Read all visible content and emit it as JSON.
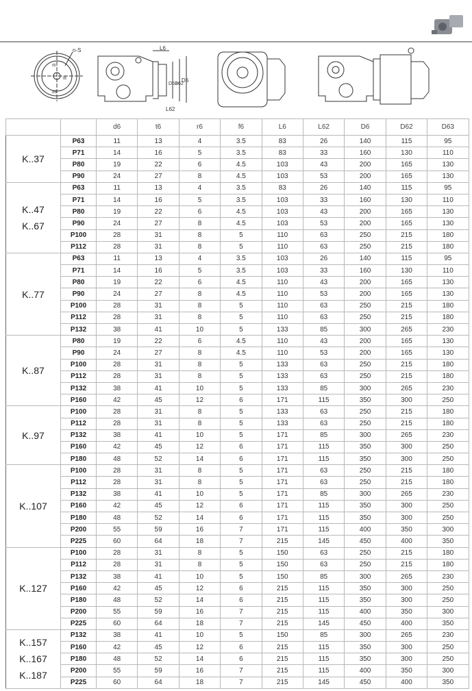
{
  "drawing_labels": {
    "n_s": "n-S",
    "d6": "d6",
    "t6": "t6",
    "r6": "r6",
    "L6": "L6",
    "L62": "L62",
    "D63": "D63",
    "D62": "D62",
    "D6": "D6"
  },
  "columns": [
    "",
    "",
    "d6",
    "t6",
    "r6",
    "f6",
    "L6",
    "L62",
    "D6",
    "D62",
    "D63"
  ],
  "groups": [
    {
      "models": [
        "K..37"
      ],
      "rows": [
        [
          "P63",
          "11",
          "13",
          "4",
          "3.5",
          "83",
          "26",
          "140",
          "115",
          "95"
        ],
        [
          "P71",
          "14",
          "16",
          "5",
          "3.5",
          "83",
          "33",
          "160",
          "130",
          "110"
        ],
        [
          "P80",
          "19",
          "22",
          "6",
          "4.5",
          "103",
          "43",
          "200",
          "165",
          "130"
        ],
        [
          "P90",
          "24",
          "27",
          "8",
          "4.5",
          "103",
          "53",
          "200",
          "165",
          "130"
        ]
      ]
    },
    {
      "models": [
        "K..47",
        "K..67"
      ],
      "rows": [
        [
          "P63",
          "11",
          "13",
          "4",
          "3.5",
          "83",
          "26",
          "140",
          "115",
          "95"
        ],
        [
          "P71",
          "14",
          "16",
          "5",
          "3.5",
          "103",
          "33",
          "160",
          "130",
          "110"
        ],
        [
          "P80",
          "19",
          "22",
          "6",
          "4.5",
          "103",
          "43",
          "200",
          "165",
          "130"
        ],
        [
          "P90",
          "24",
          "27",
          "8",
          "4.5",
          "103",
          "53",
          "200",
          "165",
          "130"
        ],
        [
          "P100",
          "28",
          "31",
          "8",
          "5",
          "110",
          "63",
          "250",
          "215",
          "180"
        ],
        [
          "P112",
          "28",
          "31",
          "8",
          "5",
          "110",
          "63",
          "250",
          "215",
          "180"
        ]
      ]
    },
    {
      "models": [
        "K..77"
      ],
      "rows": [
        [
          "P63",
          "11",
          "13",
          "4",
          "3.5",
          "103",
          "26",
          "140",
          "115",
          "95"
        ],
        [
          "P71",
          "14",
          "16",
          "5",
          "3.5",
          "103",
          "33",
          "160",
          "130",
          "110"
        ],
        [
          "P80",
          "19",
          "22",
          "6",
          "4.5",
          "110",
          "43",
          "200",
          "165",
          "130"
        ],
        [
          "P90",
          "24",
          "27",
          "8",
          "4.5",
          "110",
          "53",
          "200",
          "165",
          "130"
        ],
        [
          "P100",
          "28",
          "31",
          "8",
          "5",
          "110",
          "63",
          "250",
          "215",
          "180"
        ],
        [
          "P112",
          "28",
          "31",
          "8",
          "5",
          "110",
          "63",
          "250",
          "215",
          "180"
        ],
        [
          "P132",
          "38",
          "41",
          "10",
          "5",
          "133",
          "85",
          "300",
          "265",
          "230"
        ]
      ]
    },
    {
      "models": [
        "K..87"
      ],
      "rows": [
        [
          "P80",
          "19",
          "22",
          "6",
          "4.5",
          "110",
          "43",
          "200",
          "165",
          "130"
        ],
        [
          "P90",
          "24",
          "27",
          "8",
          "4.5",
          "110",
          "53",
          "200",
          "165",
          "130"
        ],
        [
          "P100",
          "28",
          "31",
          "8",
          "5",
          "133",
          "63",
          "250",
          "215",
          "180"
        ],
        [
          "P112",
          "28",
          "31",
          "8",
          "5",
          "133",
          "63",
          "250",
          "215",
          "180"
        ],
        [
          "P132",
          "38",
          "41",
          "10",
          "5",
          "133",
          "85",
          "300",
          "265",
          "230"
        ],
        [
          "P160",
          "42",
          "45",
          "12",
          "6",
          "171",
          "115",
          "350",
          "300",
          "250"
        ]
      ]
    },
    {
      "models": [
        "K..97"
      ],
      "rows": [
        [
          "P100",
          "28",
          "31",
          "8",
          "5",
          "133",
          "63",
          "250",
          "215",
          "180"
        ],
        [
          "P112",
          "28",
          "31",
          "8",
          "5",
          "133",
          "63",
          "250",
          "215",
          "180"
        ],
        [
          "P132",
          "38",
          "41",
          "10",
          "5",
          "171",
          "85",
          "300",
          "265",
          "230"
        ],
        [
          "P160",
          "42",
          "45",
          "12",
          "6",
          "171",
          "115",
          "350",
          "300",
          "250"
        ],
        [
          "P180",
          "48",
          "52",
          "14",
          "6",
          "171",
          "115",
          "350",
          "300",
          "250"
        ]
      ]
    },
    {
      "models": [
        "K..107"
      ],
      "rows": [
        [
          "P100",
          "28",
          "31",
          "8",
          "5",
          "171",
          "63",
          "250",
          "215",
          "180"
        ],
        [
          "P112",
          "28",
          "31",
          "8",
          "5",
          "171",
          "63",
          "250",
          "215",
          "180"
        ],
        [
          "P132",
          "38",
          "41",
          "10",
          "5",
          "171",
          "85",
          "300",
          "265",
          "230"
        ],
        [
          "P160",
          "42",
          "45",
          "12",
          "6",
          "171",
          "115",
          "350",
          "300",
          "250"
        ],
        [
          "P180",
          "48",
          "52",
          "14",
          "6",
          "171",
          "115",
          "350",
          "300",
          "250"
        ],
        [
          "P200",
          "55",
          "59",
          "16",
          "7",
          "171",
          "115",
          "400",
          "350",
          "300"
        ],
        [
          "P225",
          "60",
          "64",
          "18",
          "7",
          "215",
          "145",
          "450",
          "400",
          "350"
        ]
      ]
    },
    {
      "models": [
        "K..127"
      ],
      "rows": [
        [
          "P100",
          "28",
          "31",
          "8",
          "5",
          "150",
          "63",
          "250",
          "215",
          "180"
        ],
        [
          "P112",
          "28",
          "31",
          "8",
          "5",
          "150",
          "63",
          "250",
          "215",
          "180"
        ],
        [
          "P132",
          "38",
          "41",
          "10",
          "5",
          "150",
          "85",
          "300",
          "265",
          "230"
        ],
        [
          "P160",
          "42",
          "45",
          "12",
          "6",
          "215",
          "115",
          "350",
          "300",
          "250"
        ],
        [
          "P180",
          "48",
          "52",
          "14",
          "6",
          "215",
          "115",
          "350",
          "300",
          "250"
        ],
        [
          "P200",
          "55",
          "59",
          "16",
          "7",
          "215",
          "115",
          "400",
          "350",
          "300"
        ],
        [
          "P225",
          "60",
          "64",
          "18",
          "7",
          "215",
          "145",
          "450",
          "400",
          "350"
        ]
      ]
    },
    {
      "models": [
        "K..157",
        "K..167",
        "K..187"
      ],
      "rows": [
        [
          "P132",
          "38",
          "41",
          "10",
          "5",
          "150",
          "85",
          "300",
          "265",
          "230"
        ],
        [
          "P160",
          "42",
          "45",
          "12",
          "6",
          "215",
          "115",
          "350",
          "300",
          "250"
        ],
        [
          "P180",
          "48",
          "52",
          "14",
          "6",
          "215",
          "115",
          "350",
          "300",
          "250"
        ],
        [
          "P200",
          "55",
          "59",
          "16",
          "7",
          "215",
          "115",
          "400",
          "350",
          "300"
        ],
        [
          "P225",
          "60",
          "64",
          "18",
          "7",
          "215",
          "145",
          "450",
          "400",
          "350"
        ]
      ]
    }
  ]
}
